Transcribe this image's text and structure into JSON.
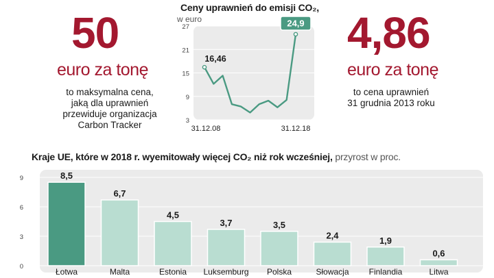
{
  "left_stat": {
    "value": "50",
    "unit": "euro za tonę",
    "description": [
      "to maksymalna cena,",
      "jaką dla uprawnień",
      "przewiduje organizacja",
      "Carbon Tracker"
    ]
  },
  "right_stat": {
    "value": "4,86",
    "unit": "euro za tonę",
    "description": [
      "to cena uprawnień",
      "31 grudnia 2013 roku"
    ]
  },
  "colors": {
    "accent_red": "#a3182f",
    "line_green": "#4a9a82",
    "bar_dark": "#4a9a82",
    "bar_light": "#b9ddd1",
    "panel_bg": "#ebebeb"
  },
  "chart_data": [
    {
      "type": "line",
      "title": "Ceny uprawnień do emisji CO₂,",
      "subtitle": "w euro",
      "y_ticks": [
        "27",
        "21",
        "15",
        "9",
        "3"
      ],
      "ylim": [
        3,
        27
      ],
      "x_tick_labels": [
        "31.12.08",
        "31.12.18"
      ],
      "x": [
        "31.12.08",
        "31.12.09",
        "31.12.10",
        "31.12.11",
        "31.12.12",
        "31.12.13",
        "31.12.14",
        "31.12.15",
        "31.12.16",
        "31.12.17",
        "31.12.18"
      ],
      "values": [
        16.46,
        12.2,
        14.3,
        7.0,
        6.4,
        4.86,
        7.0,
        7.9,
        6.2,
        8.1,
        24.9
      ],
      "annotations": [
        {
          "x": "31.12.08",
          "label": "16,46"
        },
        {
          "x": "31.12.18",
          "label": "24,9"
        }
      ]
    },
    {
      "type": "bar",
      "title_bold": "Kraje UE, które w 2018 r. wyemitowały więcej CO₂ niż rok wcześniej,",
      "title_light": " przyrost w proc.",
      "categories": [
        "Łotwa",
        "Malta",
        "Estonia",
        "Luksemburg",
        "Polska",
        "Słowacja",
        "Finlandia",
        "Litwa"
      ],
      "values": [
        8.5,
        6.7,
        4.5,
        3.7,
        3.5,
        2.4,
        1.9,
        0.6
      ],
      "value_labels": [
        "8,5",
        "6,7",
        "4,5",
        "3,7",
        "3,5",
        "2,4",
        "1,9",
        "0,6"
      ],
      "y_ticks": [
        "9",
        "6",
        "3",
        "0"
      ],
      "ylim": [
        0,
        9
      ],
      "highlight_index": 0
    }
  ]
}
